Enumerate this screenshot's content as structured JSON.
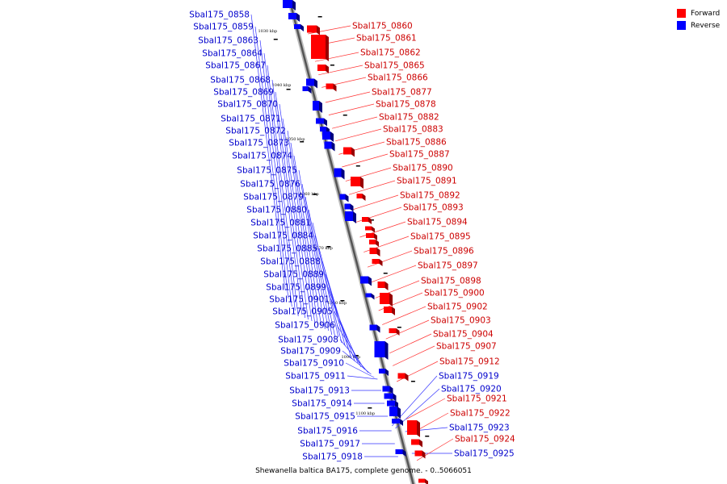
{
  "legend": {
    "forward_label": "Forward",
    "reverse_label": "Reverse",
    "forward_color": "#ff0000",
    "reverse_color": "#0000ff"
  },
  "caption": "Shewanella baltica BA175, complete genome. - 0..5066051",
  "ticks": [
    "1030 kbp",
    "1040 kbp",
    "1050 kbp",
    "1060 kbp",
    "1070 kbp",
    "1080 kbp",
    "1090 kbp",
    "1100 kbp"
  ],
  "reverse_genes": [
    "Sbal175_0858",
    "Sbal175_0859",
    "Sbal175_0863",
    "Sbal175_0864",
    "Sbal175_0867",
    "Sbal175_0868",
    "Sbal175_0869",
    "Sbal175_0870",
    "Sbal175_0871",
    "Sbal175_0872",
    "Sbal175_0873",
    "Sbal175_0874",
    "Sbal175_0875",
    "Sbal175_0876",
    "Sbal175_0879",
    "Sbal175_0880",
    "Sbal175_0881",
    "Sbal175_0884",
    "Sbal175_0885",
    "Sbal175_0888",
    "Sbal175_0889",
    "Sbal175_0899",
    "Sbal175_0901",
    "Sbal175_0905",
    "Sbal175_0906",
    "Sbal175_0908",
    "Sbal175_0909",
    "Sbal175_0910",
    "Sbal175_0911",
    "Sbal175_0913",
    "Sbal175_0914",
    "Sbal175_0915",
    "Sbal175_0916",
    "Sbal175_0917",
    "Sbal175_0918",
    "Sbal175_0919",
    "Sbal175_0920",
    "Sbal175_0923",
    "Sbal175_0925"
  ],
  "forward_genes": [
    "Sbal175_0860",
    "Sbal175_0861",
    "Sbal175_0862",
    "Sbal175_0865",
    "Sbal175_0866",
    "Sbal175_0877",
    "Sbal175_0878",
    "Sbal175_0882",
    "Sbal175_0883",
    "Sbal175_0886",
    "Sbal175_0887",
    "Sbal175_0890",
    "Sbal175_0891",
    "Sbal175_0892",
    "Sbal175_0893",
    "Sbal175_0894",
    "Sbal175_0895",
    "Sbal175_0896",
    "Sbal175_0897",
    "Sbal175_0898",
    "Sbal175_0900",
    "Sbal175_0902",
    "Sbal175_0903",
    "Sbal175_0904",
    "Sbal175_0907",
    "Sbal175_0912",
    "Sbal175_0921",
    "Sbal175_0922",
    "Sbal175_0924"
  ]
}
